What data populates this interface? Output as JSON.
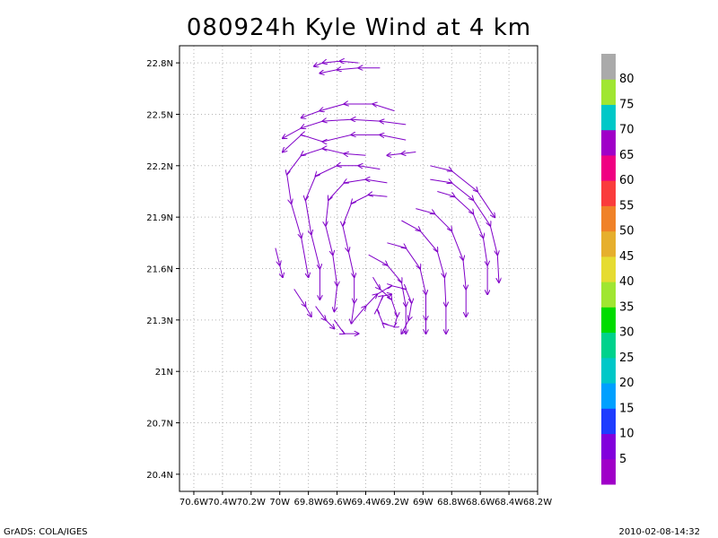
{
  "title": "080924h Kyle Wind at 4 km",
  "footer": {
    "left": "GrADS: COLA/IGES",
    "right": "2010-02-08-14:32"
  },
  "chart_data": {
    "type": "streamline",
    "title": "080924h Kyle Wind at 4 km",
    "xlabel": "",
    "ylabel": "",
    "xlim": [
      -70.7,
      -68.2
    ],
    "ylim": [
      20.3,
      22.9
    ],
    "grid": true,
    "x_ticks": [
      {
        "value": -70.6,
        "label": "70.6W"
      },
      {
        "value": -70.4,
        "label": "70.4W"
      },
      {
        "value": -70.2,
        "label": "70.2W"
      },
      {
        "value": -70.0,
        "label": "70W"
      },
      {
        "value": -69.8,
        "label": "69.8W"
      },
      {
        "value": -69.6,
        "label": "69.6W"
      },
      {
        "value": -69.4,
        "label": "69.4W"
      },
      {
        "value": -69.2,
        "label": "69.2W"
      },
      {
        "value": -69.0,
        "label": "69W"
      },
      {
        "value": -68.8,
        "label": "68.8W"
      },
      {
        "value": -68.6,
        "label": "68.6W"
      },
      {
        "value": -68.4,
        "label": "68.4W"
      },
      {
        "value": -68.2,
        "label": "68.2W"
      }
    ],
    "y_ticks": [
      {
        "value": 20.4,
        "label": "20.4N"
      },
      {
        "value": 20.7,
        "label": "20.7N"
      },
      {
        "value": 21.0,
        "label": "21N"
      },
      {
        "value": 21.3,
        "label": "21.3N"
      },
      {
        "value": 21.6,
        "label": "21.6N"
      },
      {
        "value": 21.9,
        "label": "21.9N"
      },
      {
        "value": 22.2,
        "label": "22.2N"
      },
      {
        "value": 22.5,
        "label": "22.5N"
      },
      {
        "value": 22.8,
        "label": "22.8N"
      }
    ],
    "streamline_color": "#8000c8",
    "circulation_center": {
      "lon": -69.25,
      "lat": 21.35
    },
    "domain_lon": [
      -70.05,
      -68.45
    ],
    "domain_lat": [
      21.22,
      22.62
    ],
    "streamlines": [
      {
        "points": [
          [
            -69.4,
            22.26
          ],
          [
            -69.55,
            22.27
          ],
          [
            -69.7,
            22.3
          ],
          [
            -69.85,
            22.26
          ],
          [
            -69.95,
            22.15
          ],
          [
            -69.92,
            21.98
          ],
          [
            -69.85,
            21.78
          ],
          [
            -69.8,
            21.55
          ]
        ]
      },
      {
        "points": [
          [
            -69.3,
            22.18
          ],
          [
            -69.45,
            22.2
          ],
          [
            -69.6,
            22.2
          ],
          [
            -69.75,
            22.14
          ],
          [
            -69.82,
            22.0
          ],
          [
            -69.78,
            21.8
          ],
          [
            -69.72,
            21.6
          ],
          [
            -69.72,
            21.42
          ]
        ]
      },
      {
        "points": [
          [
            -69.25,
            22.1
          ],
          [
            -69.4,
            22.12
          ],
          [
            -69.55,
            22.1
          ],
          [
            -69.66,
            22.0
          ],
          [
            -69.68,
            21.85
          ],
          [
            -69.63,
            21.68
          ],
          [
            -69.6,
            21.5
          ],
          [
            -69.62,
            21.35
          ]
        ]
      },
      {
        "points": [
          [
            -69.25,
            22.02
          ],
          [
            -69.38,
            22.03
          ],
          [
            -69.5,
            21.98
          ],
          [
            -69.56,
            21.85
          ],
          [
            -69.52,
            21.7
          ],
          [
            -69.48,
            21.55
          ],
          [
            -69.48,
            21.4
          ],
          [
            -69.5,
            21.28
          ]
        ]
      },
      {
        "points": [
          [
            -69.12,
            22.35
          ],
          [
            -69.3,
            22.38
          ],
          [
            -69.5,
            22.38
          ],
          [
            -69.7,
            22.34
          ],
          [
            -69.85,
            22.38
          ],
          [
            -69.98,
            22.28
          ]
        ]
      },
      {
        "points": [
          [
            -69.12,
            22.44
          ],
          [
            -69.3,
            22.46
          ],
          [
            -69.5,
            22.47
          ],
          [
            -69.7,
            22.46
          ],
          [
            -69.85,
            22.42
          ],
          [
            -69.98,
            22.36
          ]
        ]
      },
      {
        "points": [
          [
            -69.2,
            22.52
          ],
          [
            -69.35,
            22.56
          ],
          [
            -69.55,
            22.56
          ],
          [
            -69.72,
            22.52
          ],
          [
            -69.85,
            22.48
          ]
        ]
      },
      {
        "points": [
          [
            -69.45,
            22.8
          ],
          [
            -69.58,
            22.81
          ],
          [
            -69.7,
            22.8
          ],
          [
            -69.76,
            22.78
          ]
        ]
      },
      {
        "points": [
          [
            -69.3,
            22.77
          ],
          [
            -69.45,
            22.77
          ],
          [
            -69.6,
            22.76
          ],
          [
            -69.72,
            22.74
          ]
        ]
      },
      {
        "points": [
          [
            -68.9,
            22.05
          ],
          [
            -68.78,
            22.02
          ],
          [
            -68.65,
            21.92
          ],
          [
            -68.58,
            21.78
          ],
          [
            -68.55,
            21.62
          ],
          [
            -68.55,
            21.45
          ]
        ]
      },
      {
        "points": [
          [
            -68.95,
            22.12
          ],
          [
            -68.8,
            22.1
          ],
          [
            -68.65,
            22.0
          ],
          [
            -68.53,
            21.85
          ],
          [
            -68.48,
            21.68
          ],
          [
            -68.47,
            21.52
          ]
        ]
      },
      {
        "points": [
          [
            -68.95,
            22.2
          ],
          [
            -68.8,
            22.17
          ],
          [
            -68.62,
            22.05
          ],
          [
            -68.5,
            21.9
          ]
        ]
      },
      {
        "points": [
          [
            -69.05,
            21.95
          ],
          [
            -68.92,
            21.92
          ],
          [
            -68.8,
            21.82
          ],
          [
            -68.72,
            21.65
          ],
          [
            -68.7,
            21.48
          ],
          [
            -68.7,
            21.32
          ]
        ]
      },
      {
        "points": [
          [
            -69.15,
            21.88
          ],
          [
            -69.02,
            21.82
          ],
          [
            -68.9,
            21.7
          ],
          [
            -68.85,
            21.55
          ],
          [
            -68.84,
            21.38
          ],
          [
            -68.84,
            21.22
          ]
        ]
      },
      {
        "points": [
          [
            -69.25,
            21.75
          ],
          [
            -69.12,
            21.72
          ],
          [
            -69.02,
            21.6
          ],
          [
            -68.98,
            21.45
          ],
          [
            -68.98,
            21.3
          ],
          [
            -68.98,
            21.22
          ]
        ]
      },
      {
        "points": [
          [
            -69.38,
            21.68
          ],
          [
            -69.25,
            21.62
          ],
          [
            -69.15,
            21.52
          ],
          [
            -69.12,
            21.38
          ],
          [
            -69.12,
            21.22
          ]
        ]
      },
      {
        "points": [
          [
            -69.35,
            21.55
          ],
          [
            -69.3,
            21.48
          ],
          [
            -69.22,
            21.42
          ],
          [
            -69.18,
            21.32
          ],
          [
            -69.2,
            21.26
          ],
          [
            -69.28,
            21.28
          ],
          [
            -69.32,
            21.36
          ],
          [
            -69.28,
            21.44
          ],
          [
            -69.22,
            21.45
          ]
        ]
      },
      {
        "points": [
          [
            -69.48,
            21.3
          ],
          [
            -69.4,
            21.38
          ],
          [
            -69.32,
            21.45
          ],
          [
            -69.22,
            21.5
          ],
          [
            -69.12,
            21.48
          ],
          [
            -69.08,
            21.4
          ],
          [
            -69.1,
            21.3
          ],
          [
            -69.15,
            21.22
          ]
        ]
      },
      {
        "points": [
          [
            -69.62,
            21.3
          ],
          [
            -69.55,
            21.22
          ],
          [
            -69.45,
            21.22
          ]
        ]
      },
      {
        "points": [
          [
            -69.75,
            21.38
          ],
          [
            -69.68,
            21.3
          ],
          [
            -69.62,
            21.25
          ]
        ]
      },
      {
        "points": [
          [
            -70.03,
            21.72
          ],
          [
            -70.0,
            21.62
          ],
          [
            -69.98,
            21.55
          ]
        ]
      },
      {
        "points": [
          [
            -69.9,
            21.48
          ],
          [
            -69.82,
            21.38
          ],
          [
            -69.78,
            21.32
          ]
        ]
      },
      {
        "points": [
          [
            -69.05,
            22.28
          ],
          [
            -69.15,
            22.27
          ],
          [
            -69.25,
            22.26
          ]
        ]
      }
    ],
    "colorbar": {
      "levels": [
        5,
        10,
        15,
        20,
        25,
        30,
        35,
        40,
        45,
        50,
        55,
        60,
        65,
        70,
        75,
        80
      ],
      "colors": [
        "#a000c8",
        "#8200dc",
        "#1e3cff",
        "#00a0ff",
        "#00c8c8",
        "#00d28c",
        "#00dc00",
        "#a0e632",
        "#e6dc32",
        "#e6af2d",
        "#f08228",
        "#fa3c3c",
        "#f00082",
        "#a000c8",
        "#00c8c8",
        "#a0e632",
        "#aaaaaa"
      ]
    }
  }
}
